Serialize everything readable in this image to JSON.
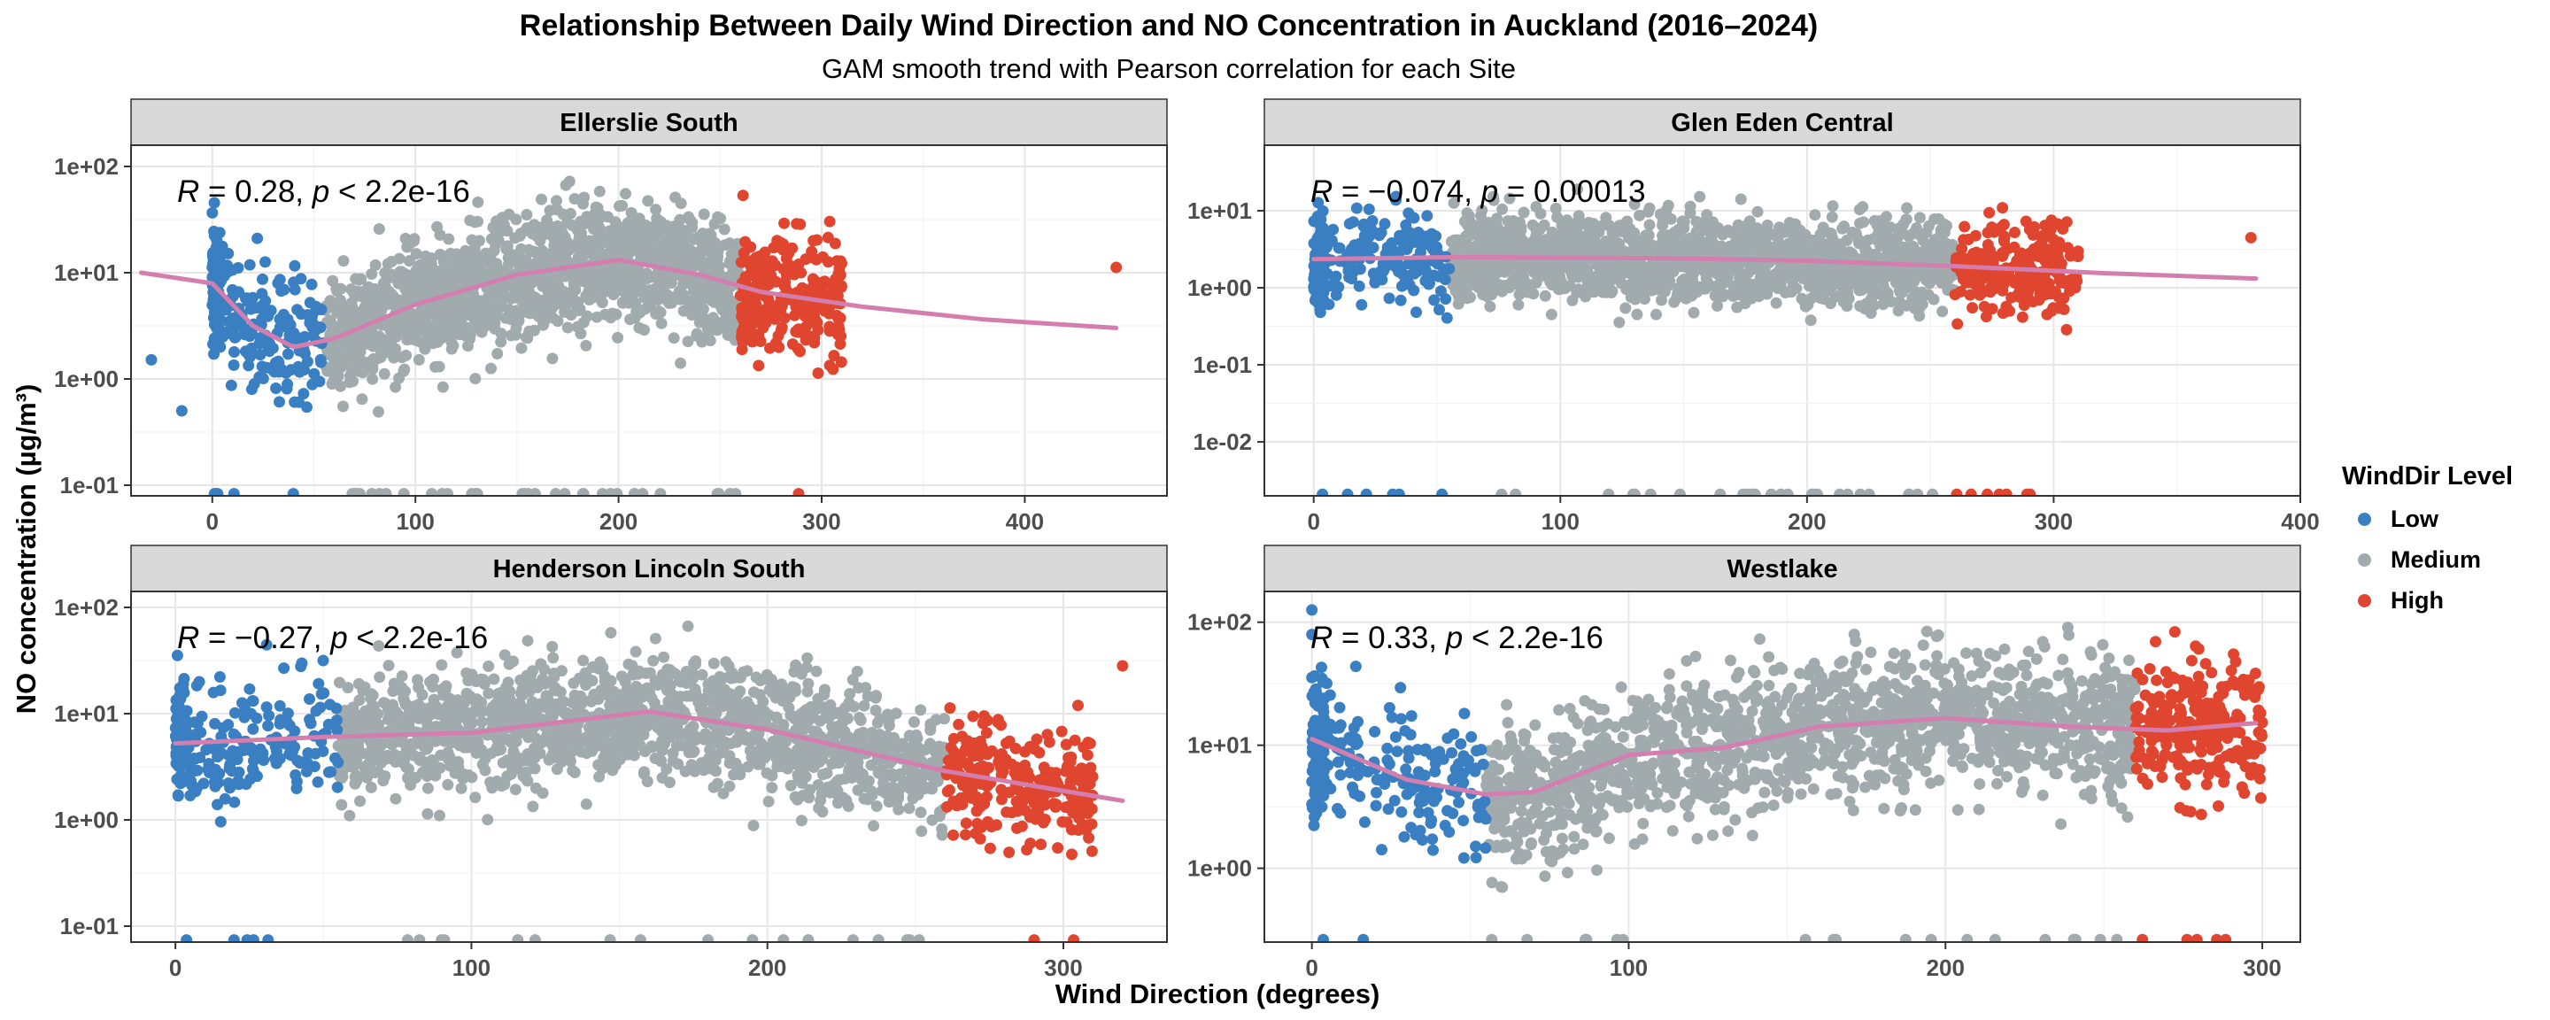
{
  "title": "Relationship Between Daily Wind Direction and  NO  Concentration in Auckland (2016–2024)",
  "subtitle": "GAM smooth trend with Pearson correlation for each Site",
  "xlabel": "Wind Direction (degrees)",
  "ylabel": "NO  concentration (µg/m³)",
  "legend": {
    "title": "WindDir Level",
    "items": [
      {
        "label": "Low",
        "color": "#3a7fc1"
      },
      {
        "label": "Medium",
        "color": "#a1aaad"
      },
      {
        "label": "High",
        "color": "#e0462f"
      }
    ]
  },
  "chart_data": [
    {
      "type": "scatter",
      "facet": "Ellerslie South",
      "annotation": {
        "R_label": "R",
        "R_value": " = 0.28, ",
        "p_label": "p",
        "p_value": " < 2.2e-16"
      },
      "xticks": [
        0,
        100,
        200,
        300,
        400
      ],
      "xlim": [
        -40,
        470
      ],
      "yscale": "log",
      "yticks": [
        "1e-01",
        "1e+00",
        "1e+01",
        "1e+02"
      ],
      "ylim_log10": [
        -1.1,
        2.2
      ],
      "groups": {
        "Low": [
          0,
          55
        ],
        "Medium": [
          55,
          260
        ],
        "High": [
          260,
          310
        ]
      },
      "outliers": [
        [
          -30,
          0.18
        ],
        [
          -15,
          -0.3
        ],
        [
          445,
          1.05
        ]
      ],
      "gam_curve": [
        [
          -35,
          1.0
        ],
        [
          0,
          0.9
        ],
        [
          20,
          0.5
        ],
        [
          40,
          0.3
        ],
        [
          60,
          0.38
        ],
        [
          100,
          0.7
        ],
        [
          150,
          0.98
        ],
        [
          200,
          1.12
        ],
        [
          240,
          0.98
        ],
        [
          270,
          0.82
        ],
        [
          320,
          0.68
        ],
        [
          380,
          0.56
        ],
        [
          445,
          0.48
        ]
      ]
    },
    {
      "type": "scatter",
      "facet": "Glen Eden Central",
      "annotation": {
        "R_label": "R",
        "R_value": " = −0.074, ",
        "p_label": "p",
        "p_value": " = 0.00013"
      },
      "xticks": [
        0,
        100,
        200,
        300,
        400
      ],
      "xlim": [
        -20,
        400
      ],
      "yscale": "log",
      "yticks": [
        "1e-02",
        "1e-01",
        "1e+00",
        "1e+01"
      ],
      "ylim_log10": [
        -2.7,
        1.85
      ],
      "groups": {
        "Low": [
          0,
          55
        ],
        "Medium": [
          55,
          260
        ],
        "High": [
          260,
          310
        ]
      },
      "outliers": [
        [
          380,
          0.65
        ]
      ],
      "gam_curve": [
        [
          0,
          0.37
        ],
        [
          60,
          0.4
        ],
        [
          150,
          0.38
        ],
        [
          200,
          0.35
        ],
        [
          260,
          0.28
        ],
        [
          320,
          0.19
        ],
        [
          382,
          0.12
        ]
      ]
    },
    {
      "type": "scatter",
      "facet": "Henderson Lincoln South",
      "annotation": {
        "R_label": "R",
        "R_value": " = −0.27, ",
        "p_label": "p",
        "p_value": " < 2.2e-16"
      },
      "xticks": [
        0,
        100,
        200,
        300
      ],
      "xlim": [
        -15,
        335
      ],
      "yscale": "log",
      "yticks": [
        "1e-01",
        "1e+00",
        "1e+01",
        "1e+02"
      ],
      "ylim_log10": [
        -1.15,
        2.15
      ],
      "groups": {
        "Low": [
          0,
          55
        ],
        "Medium": [
          55,
          260
        ],
        "High": [
          260,
          310
        ]
      },
      "outliers": [
        [
          320,
          1.45
        ]
      ],
      "gam_curve": [
        [
          0,
          0.72
        ],
        [
          50,
          0.78
        ],
        [
          100,
          0.82
        ],
        [
          160,
          1.02
        ],
        [
          200,
          0.85
        ],
        [
          260,
          0.46
        ],
        [
          290,
          0.32
        ],
        [
          320,
          0.18
        ]
      ]
    },
    {
      "type": "scatter",
      "facet": "Westlake",
      "annotation": {
        "R_label": "R",
        "R_value": " = 0.33, ",
        "p_label": "p",
        "p_value": " < 2.2e-16"
      },
      "xticks": [
        0,
        100,
        200,
        300
      ],
      "xlim": [
        -15,
        312
      ],
      "yscale": "log",
      "yticks": [
        "1e+00",
        "1e+01",
        "1e+02"
      ],
      "ylim_log10": [
        -0.6,
        2.25
      ],
      "groups": {
        "Low": [
          0,
          55
        ],
        "Medium": [
          55,
          260
        ],
        "High": [
          260,
          300
        ]
      },
      "outliers": [
        [
          0,
          2.1
        ],
        [
          0,
          1.9
        ],
        [
          0,
          1.55
        ]
      ],
      "gam_curve": [
        [
          0,
          1.05
        ],
        [
          30,
          0.72
        ],
        [
          55,
          0.6
        ],
        [
          70,
          0.62
        ],
        [
          100,
          0.92
        ],
        [
          130,
          0.98
        ],
        [
          160,
          1.15
        ],
        [
          200,
          1.22
        ],
        [
          240,
          1.15
        ],
        [
          270,
          1.12
        ],
        [
          298,
          1.18
        ]
      ]
    }
  ]
}
